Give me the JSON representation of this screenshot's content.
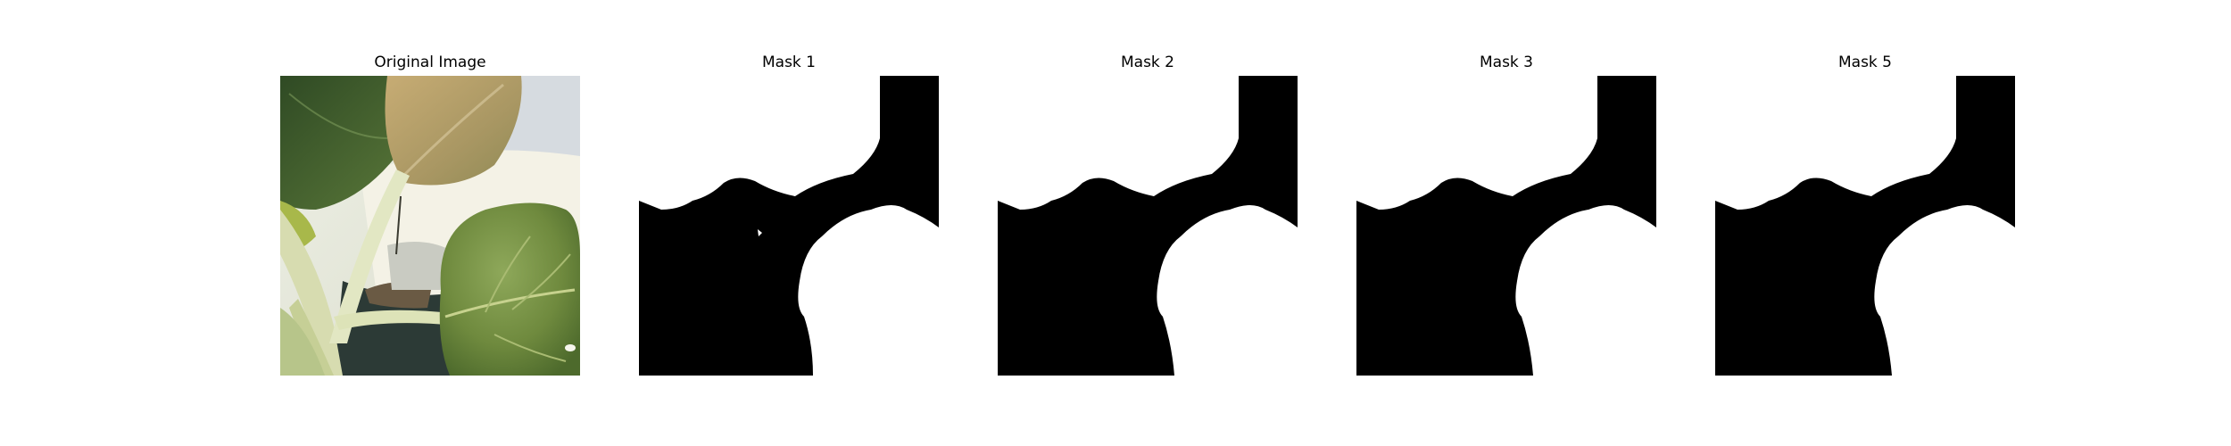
{
  "panels": [
    {
      "title": "Original Image",
      "kind": "photo",
      "subject": "leafy green plant with pale stems in a white pot"
    },
    {
      "title": "Mask 1",
      "kind": "mask",
      "has_speck": true
    },
    {
      "title": "Mask 2",
      "kind": "mask",
      "has_speck": false
    },
    {
      "title": "Mask 3",
      "kind": "mask",
      "has_speck": false
    },
    {
      "title": "Mask 5",
      "kind": "mask",
      "has_speck": false
    }
  ],
  "colors": {
    "mask_foreground": "#ffffff",
    "mask_background": "#000000",
    "leaf_dark": "#3e5a2e",
    "leaf_light": "#7f9a48",
    "leaf_yellowed": "#b9a36a",
    "stem": "#dfe5bf",
    "pot": "#f3f1e4"
  }
}
